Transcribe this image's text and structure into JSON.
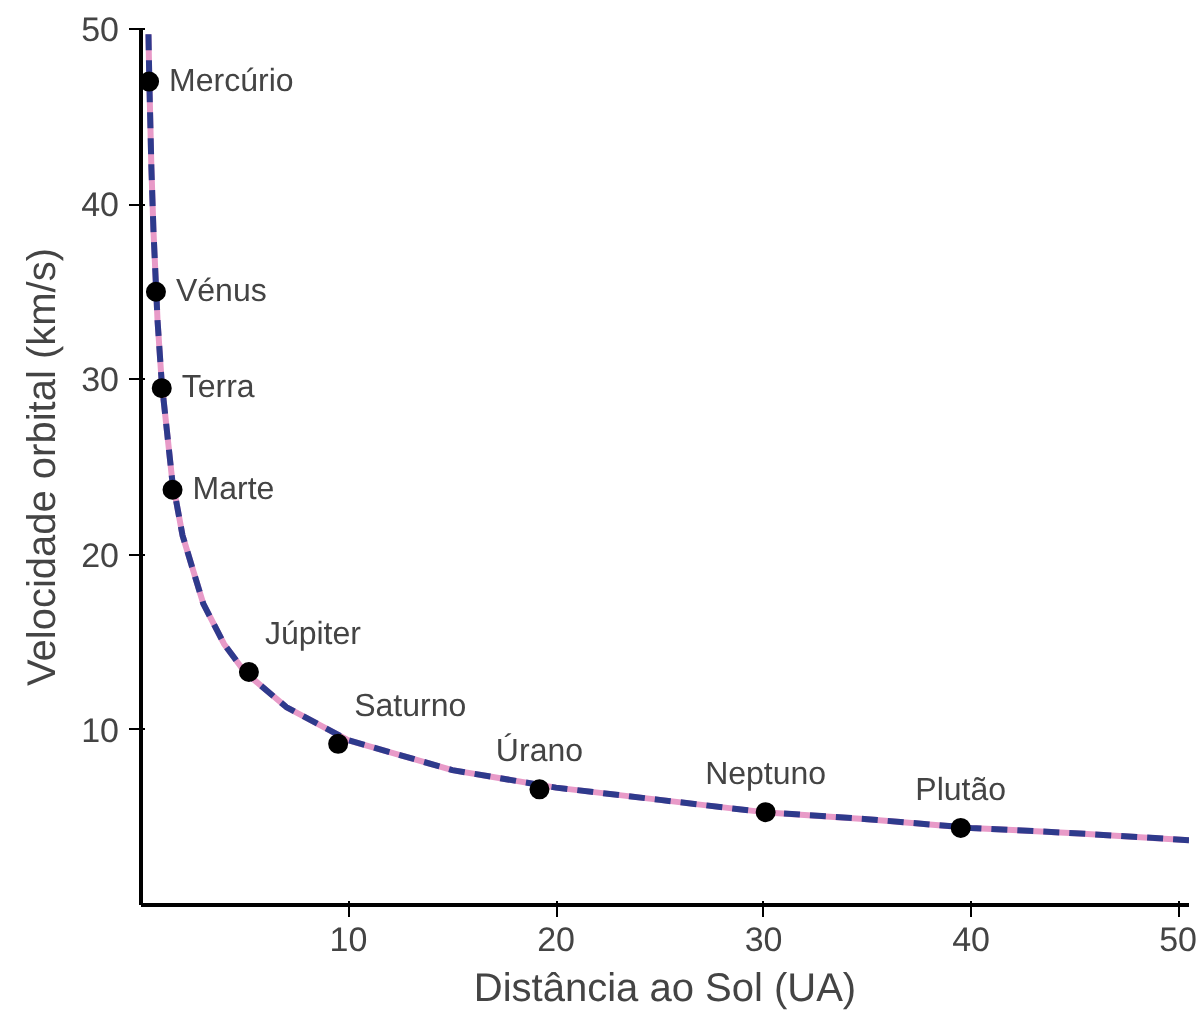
{
  "chart_data": {
    "type": "line",
    "xlabel": "Distância ao Sol (UA)",
    "ylabel": "Velocidade orbital (km/s)",
    "xlim": [
      0,
      50.5
    ],
    "ylim": [
      0,
      50
    ],
    "xticks": [
      10,
      20,
      30,
      40,
      50
    ],
    "yticks": [
      10,
      20,
      30,
      40,
      50
    ],
    "grid": false,
    "series": [
      {
        "color": "#e89ac8",
        "line_style": "solid",
        "x": [
          0.36,
          0.4,
          0.5,
          0.6,
          0.8,
          1,
          1.5,
          2,
          3,
          4,
          5,
          7,
          10,
          15,
          20,
          25,
          30,
          35,
          40,
          45,
          50.5
        ],
        "values": [
          49.7,
          47.1,
          42.1,
          38.5,
          33.3,
          29.8,
          24.3,
          21.1,
          17.2,
          14.9,
          13.3,
          11.3,
          9.4,
          7.7,
          6.7,
          6.0,
          5.3,
          4.9,
          4.4,
          4.1,
          3.7
        ]
      },
      {
        "color": "#2e3a8c",
        "line_style": "dashed",
        "x": [
          0.36,
          0.4,
          0.5,
          0.6,
          0.8,
          1,
          1.5,
          2,
          3,
          4,
          5,
          7,
          10,
          15,
          20,
          25,
          30,
          35,
          40,
          45,
          50.5
        ],
        "values": [
          49.7,
          47.1,
          42.1,
          38.5,
          33.3,
          29.8,
          24.3,
          21.1,
          17.2,
          14.9,
          13.3,
          11.3,
          9.4,
          7.7,
          6.7,
          6.0,
          5.3,
          4.9,
          4.4,
          4.1,
          3.7
        ]
      },
      {
        "type": "scatter",
        "color": "#000000",
        "marker": "circle",
        "x": [
          0.39,
          0.72,
          1,
          1.52,
          5.2,
          9.5,
          19.2,
          30.1,
          39.5
        ],
        "values": [
          47,
          35,
          29.5,
          23.7,
          13.3,
          9.2,
          6.6,
          5.3,
          4.4
        ]
      }
    ],
    "annotations": [
      {
        "text": "Mercúrio",
        "x": 0.39,
        "y": 47
      },
      {
        "text": "Vénus",
        "x": 0.72,
        "y": 35
      },
      {
        "text": "Terra",
        "x": 1,
        "y": 29.5
      },
      {
        "text": "Marte",
        "x": 1.52,
        "y": 23.7
      },
      {
        "text": "Júpiter",
        "x": 5.2,
        "y": 13.3
      },
      {
        "text": "Saturno",
        "x": 9.5,
        "y": 9.2
      },
      {
        "text": "Úrano",
        "x": 19.2,
        "y": 6.6
      },
      {
        "text": "Neptuno",
        "x": 30.1,
        "y": 5.3
      },
      {
        "text": "Plutão",
        "x": 39.5,
        "y": 4.4
      }
    ]
  }
}
